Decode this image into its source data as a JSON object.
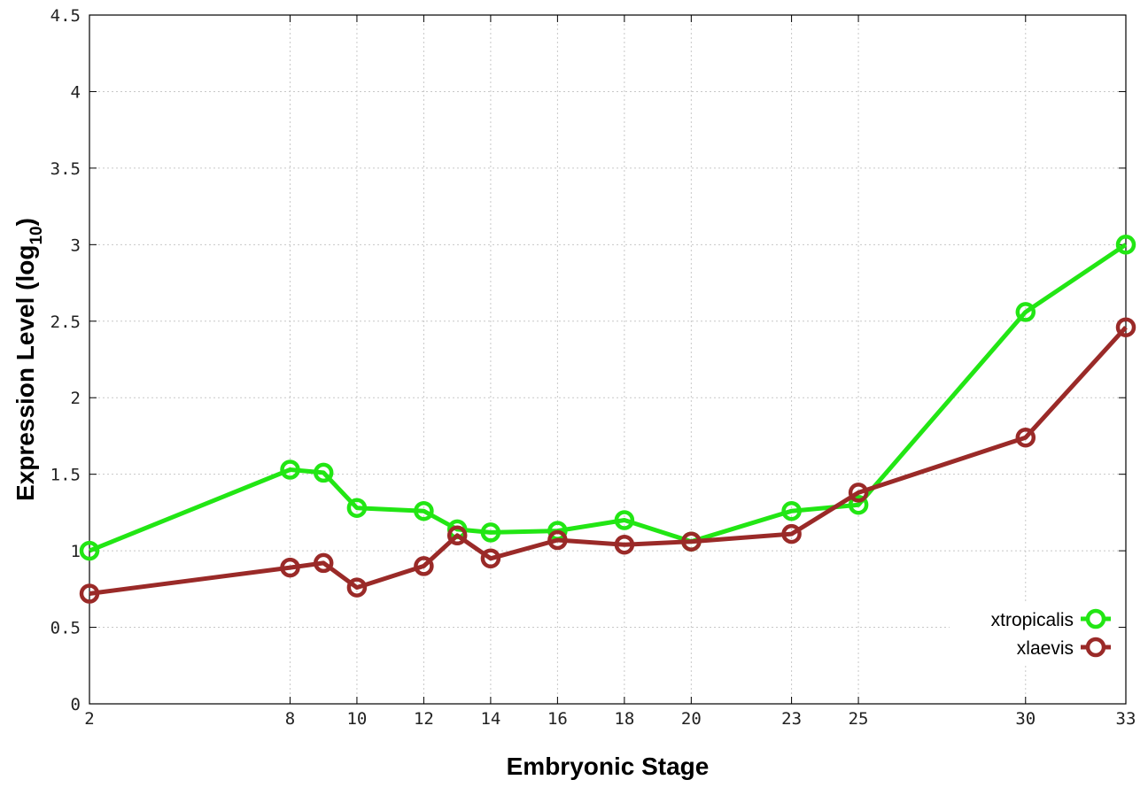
{
  "chart_data": {
    "type": "line",
    "xlabel": "Embryonic Stage",
    "ylabel_main": "Expression Level (log",
    "ylabel_sub": "10",
    "ylabel_close": ")",
    "xlim": [
      2,
      33
    ],
    "ylim": [
      0,
      4.5
    ],
    "x_ticks": [
      2,
      8,
      10,
      12,
      14,
      16,
      18,
      20,
      23,
      25,
      30,
      33
    ],
    "y_ticks": [
      0,
      0.5,
      1,
      1.5,
      2,
      2.5,
      3,
      3.5,
      4,
      4.5
    ],
    "y_tick_labels": [
      "0",
      "0.5",
      "1",
      "1.5",
      "2",
      "2.5",
      "3",
      "3.5",
      "4",
      "4.5"
    ],
    "grid": true,
    "legend_position": "bottom-right",
    "series": [
      {
        "name": "xtropicalis",
        "color": "#22e614",
        "x": [
          2,
          8,
          9,
          10,
          12,
          13,
          14,
          16,
          18,
          20,
          23,
          25,
          30,
          33
        ],
        "values": [
          1.0,
          1.53,
          1.51,
          1.28,
          1.26,
          1.14,
          1.12,
          1.13,
          1.2,
          1.06,
          1.26,
          1.3,
          2.56,
          3.0
        ]
      },
      {
        "name": "xlaevis",
        "color": "#9a2a28",
        "x": [
          2,
          8,
          9,
          10,
          12,
          13,
          14,
          16,
          18,
          20,
          23,
          25,
          30,
          33
        ],
        "values": [
          0.72,
          0.89,
          0.92,
          0.76,
          0.9,
          1.1,
          0.95,
          1.07,
          1.04,
          1.06,
          1.11,
          1.38,
          1.74,
          2.46
        ]
      }
    ]
  }
}
